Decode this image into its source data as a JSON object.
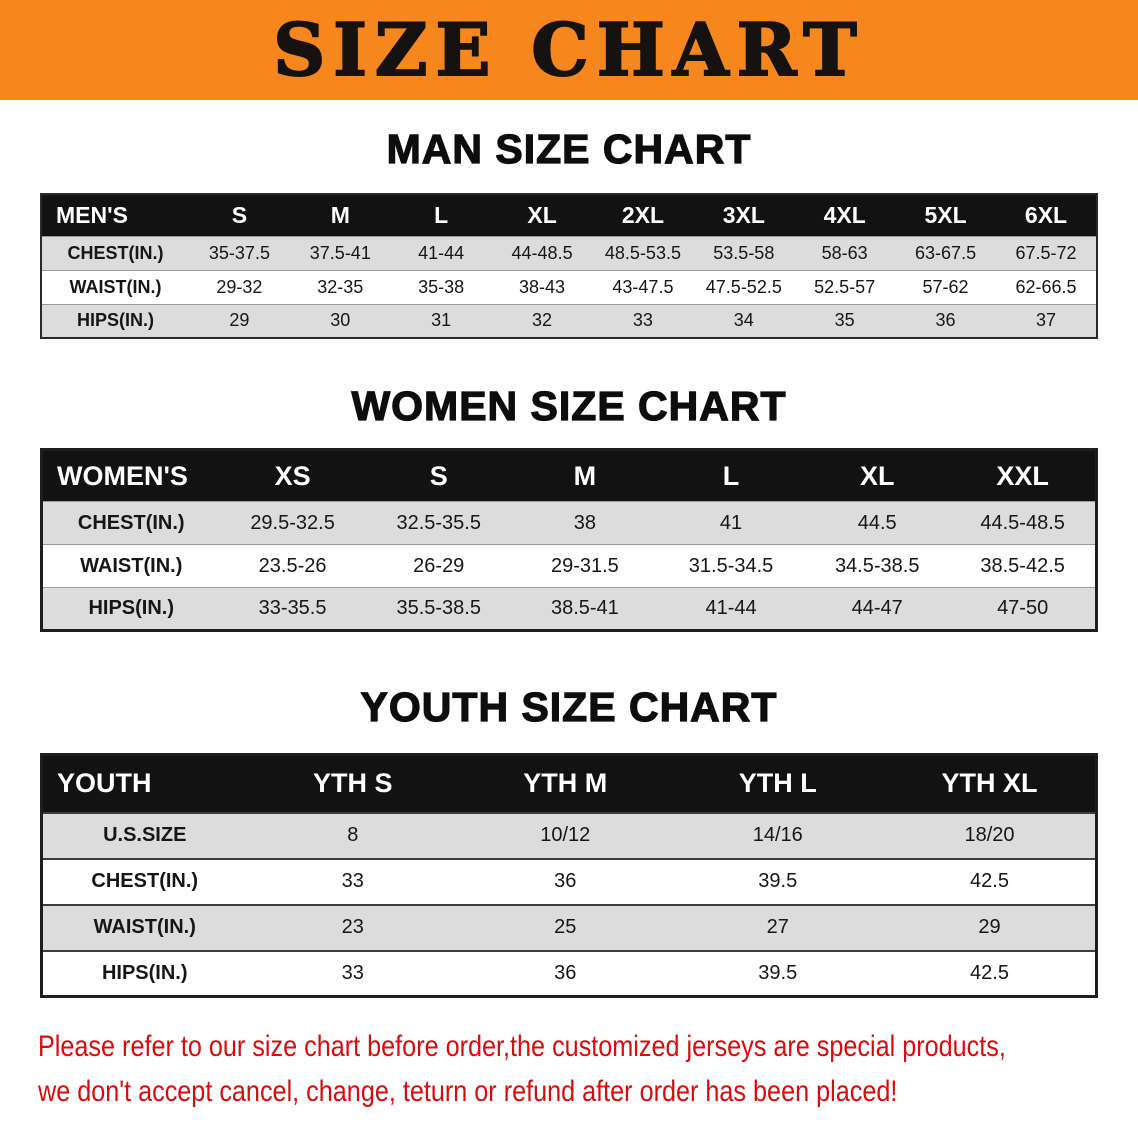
{
  "banner": {
    "title": "SIZE CHART",
    "bg_color": "#F6871F"
  },
  "sections": [
    {
      "heading": "MAN SIZE CHART",
      "header": [
        "MEN'S",
        "S",
        "M",
        "L",
        "XL",
        "2XL",
        "3XL",
        "4XL",
        "5XL",
        "6XL"
      ],
      "rows": [
        [
          "CHEST(IN.)",
          "35-37.5",
          "37.5-41",
          "41-44",
          "44-48.5",
          "48.5-53.5",
          "53.5-58",
          "58-63",
          "63-67.5",
          "67.5-72"
        ],
        [
          "WAIST(IN.)",
          "29-32",
          "32-35",
          "35-38",
          "38-43",
          "43-47.5",
          "47.5-52.5",
          "52.5-57",
          "57-62",
          "62-66.5"
        ],
        [
          "HIPS(IN.)",
          "29",
          "30",
          "31",
          "32",
          "33",
          "34",
          "35",
          "36",
          "37"
        ]
      ]
    },
    {
      "heading": "WOMEN SIZE CHART",
      "header": [
        "WOMEN'S",
        "XS",
        "S",
        "M",
        "L",
        "XL",
        "XXL"
      ],
      "rows": [
        [
          "CHEST(IN.)",
          "29.5-32.5",
          "32.5-35.5",
          "38",
          "41",
          "44.5",
          "44.5-48.5"
        ],
        [
          "WAIST(IN.)",
          "23.5-26",
          "26-29",
          "29-31.5",
          "31.5-34.5",
          "34.5-38.5",
          "38.5-42.5"
        ],
        [
          "HIPS(IN.)",
          "33-35.5",
          "35.5-38.5",
          "38.5-41",
          "41-44",
          "44-47",
          "47-50"
        ]
      ]
    },
    {
      "heading": "YOUTH SIZE CHART",
      "header": [
        "YOUTH",
        "YTH S",
        "YTH M",
        "YTH L",
        "YTH XL"
      ],
      "rows": [
        [
          "U.S.SIZE",
          "8",
          "10/12",
          "14/16",
          "18/20"
        ],
        [
          "CHEST(IN.)",
          "33",
          "36",
          "39.5",
          "42.5"
        ],
        [
          "WAIST(IN.)",
          "23",
          "25",
          "27",
          "29"
        ],
        [
          "HIPS(IN.)",
          "33",
          "36",
          "39.5",
          "42.5"
        ]
      ]
    }
  ],
  "footer": {
    "line1": "Please refer to our size chart before order,the customized jerseys are special products,",
    "line2": "we don't accept cancel, change, teturn or refund after order has been placed!",
    "text_color": "#d60d0d"
  }
}
